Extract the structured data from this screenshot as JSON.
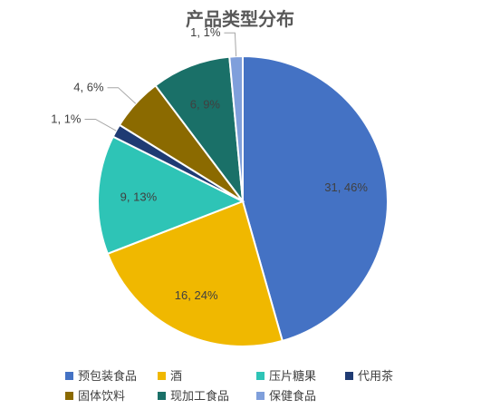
{
  "chart_data": {
    "type": "pie",
    "title": "产品类型分布",
    "series": [
      {
        "slices": [
          {
            "name": "预包装食品",
            "value": 31,
            "percent": "46%",
            "label": "31, 46%",
            "color": "#4472C4"
          },
          {
            "name": "酒",
            "value": 16,
            "percent": "24%",
            "label": "16, 24%",
            "color": "#F0B800"
          },
          {
            "name": "压片糖果",
            "value": 9,
            "percent": "13%",
            "label": "9, 13%",
            "color": "#2EC4B6"
          },
          {
            "name": "代用茶",
            "value": 1,
            "percent": "1%",
            "label": "1, 1%",
            "color": "#1F3B73"
          },
          {
            "name": "固体饮料",
            "value": 4,
            "percent": "6%",
            "label": "4, 6%",
            "color": "#8B6A00"
          },
          {
            "name": "现加工食品",
            "value": 6,
            "percent": "9%",
            "label": "6, 9%",
            "color": "#1A7068"
          },
          {
            "name": "保健食品",
            "value": 1,
            "percent": "1%",
            "label": "1, 1%",
            "color": "#7F9FDB"
          }
        ]
      }
    ],
    "legend_position": "bottom"
  }
}
